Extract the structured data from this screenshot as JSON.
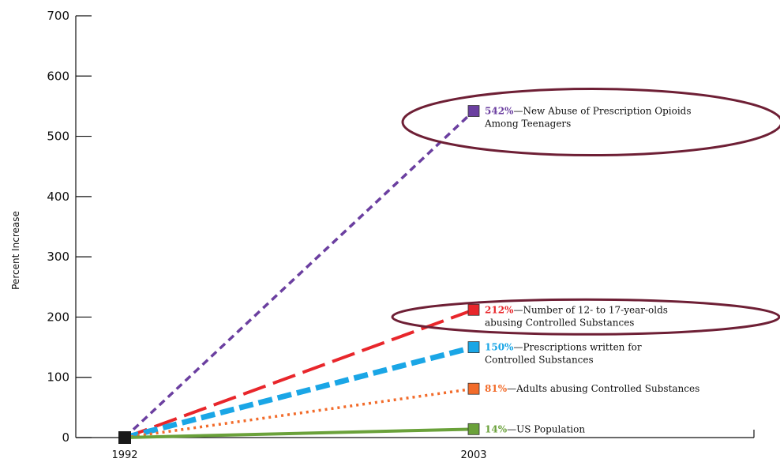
{
  "chart_data": {
    "type": "line",
    "title": "",
    "xlabel": "",
    "ylabel": "Percent Increase",
    "categories": [
      "1992",
      "2003"
    ],
    "ylim": [
      0,
      700
    ],
    "yticks": [
      0,
      100,
      200,
      300,
      400,
      500,
      600,
      700
    ],
    "grid": false,
    "series": [
      {
        "values": [
          0,
          542
        ],
        "color": "#6b3fa0",
        "style": "dashed",
        "label_value": "542%",
        "label_text": [
          "—New Abuse of Prescription Opioids",
          "Among Teenagers"
        ],
        "highlighted": true
      },
      {
        "values": [
          0,
          212
        ],
        "color": "#e8262b",
        "style": "long-dashed",
        "label_value": "212%",
        "label_text": [
          "—Number of 12- to 17-year-olds",
          "abusing Controlled Substances"
        ],
        "highlighted": true
      },
      {
        "values": [
          0,
          150
        ],
        "color": "#1aa6e6",
        "style": "thick-dashed",
        "label_value": "150%",
        "label_text": [
          "—Prescriptions written for",
          "Controlled Substances"
        ],
        "highlighted": false
      },
      {
        "values": [
          0,
          81
        ],
        "color": "#f26b2a",
        "style": "dotted",
        "label_value": "81%",
        "label_text": [
          "—Adults abusing Controlled Substances"
        ],
        "highlighted": false
      },
      {
        "values": [
          0,
          14
        ],
        "color": "#6aa13a",
        "style": "solid",
        "label_value": "14%",
        "label_text": [
          "—US Population"
        ],
        "highlighted": false
      }
    ],
    "highlight_color": "#6e1f35",
    "start_marker_color": "#1a1a1a"
  }
}
